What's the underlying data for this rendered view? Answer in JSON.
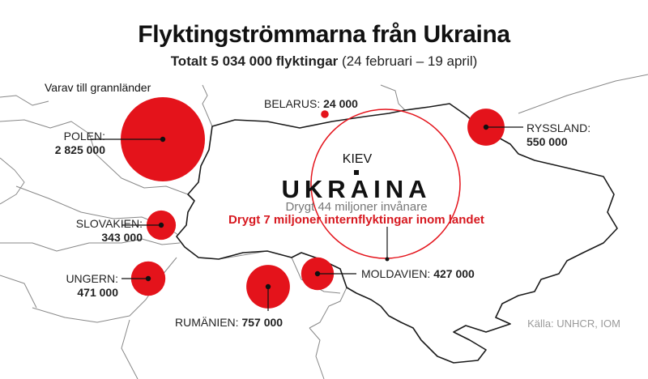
{
  "title": "Flyktingströmmarna från Ukraina",
  "subtitle": {
    "total": "Totalt 5 034 000 flyktingar",
    "period": "(24 februari – 19 april)"
  },
  "neighbours_heading": "Varav till grannländer",
  "colors": {
    "bubble": "#e4131b",
    "ring": "#e4131b",
    "map_line": "#888888",
    "ukraine_border": "#1a1a1a",
    "highlight_text": "#d71920"
  },
  "countries": [
    {
      "key": "polen",
      "label": "POLEN:",
      "value": "2 825 000",
      "refugees": 2825000
    },
    {
      "key": "slovakien",
      "label": "SLOVAKIEN:",
      "value": "343 000",
      "refugees": 343000
    },
    {
      "key": "ungern",
      "label": "UNGERN:",
      "value": "471 000",
      "refugees": 471000
    },
    {
      "key": "rumanien",
      "label": "RUMÄNIEN:",
      "value": "757 000",
      "refugees": 757000
    },
    {
      "key": "moldavien",
      "label": "MOLDAVIEN:",
      "value": "427 000",
      "refugees": 427000
    },
    {
      "key": "belarus",
      "label": "BELARUS:",
      "value": "24 000",
      "refugees": 24000
    },
    {
      "key": "ryssland",
      "label": "RYSSLAND:",
      "value": "550 000",
      "refugees": 550000
    }
  ],
  "ukraine": {
    "capital": "KIEV",
    "name": "UKRAINA",
    "population": "Drygt 44 miljoner invånare",
    "idp": "Drygt 7 miljoner internflyktingar inom landet"
  },
  "source": "Källa: UNHCR, IOM"
}
